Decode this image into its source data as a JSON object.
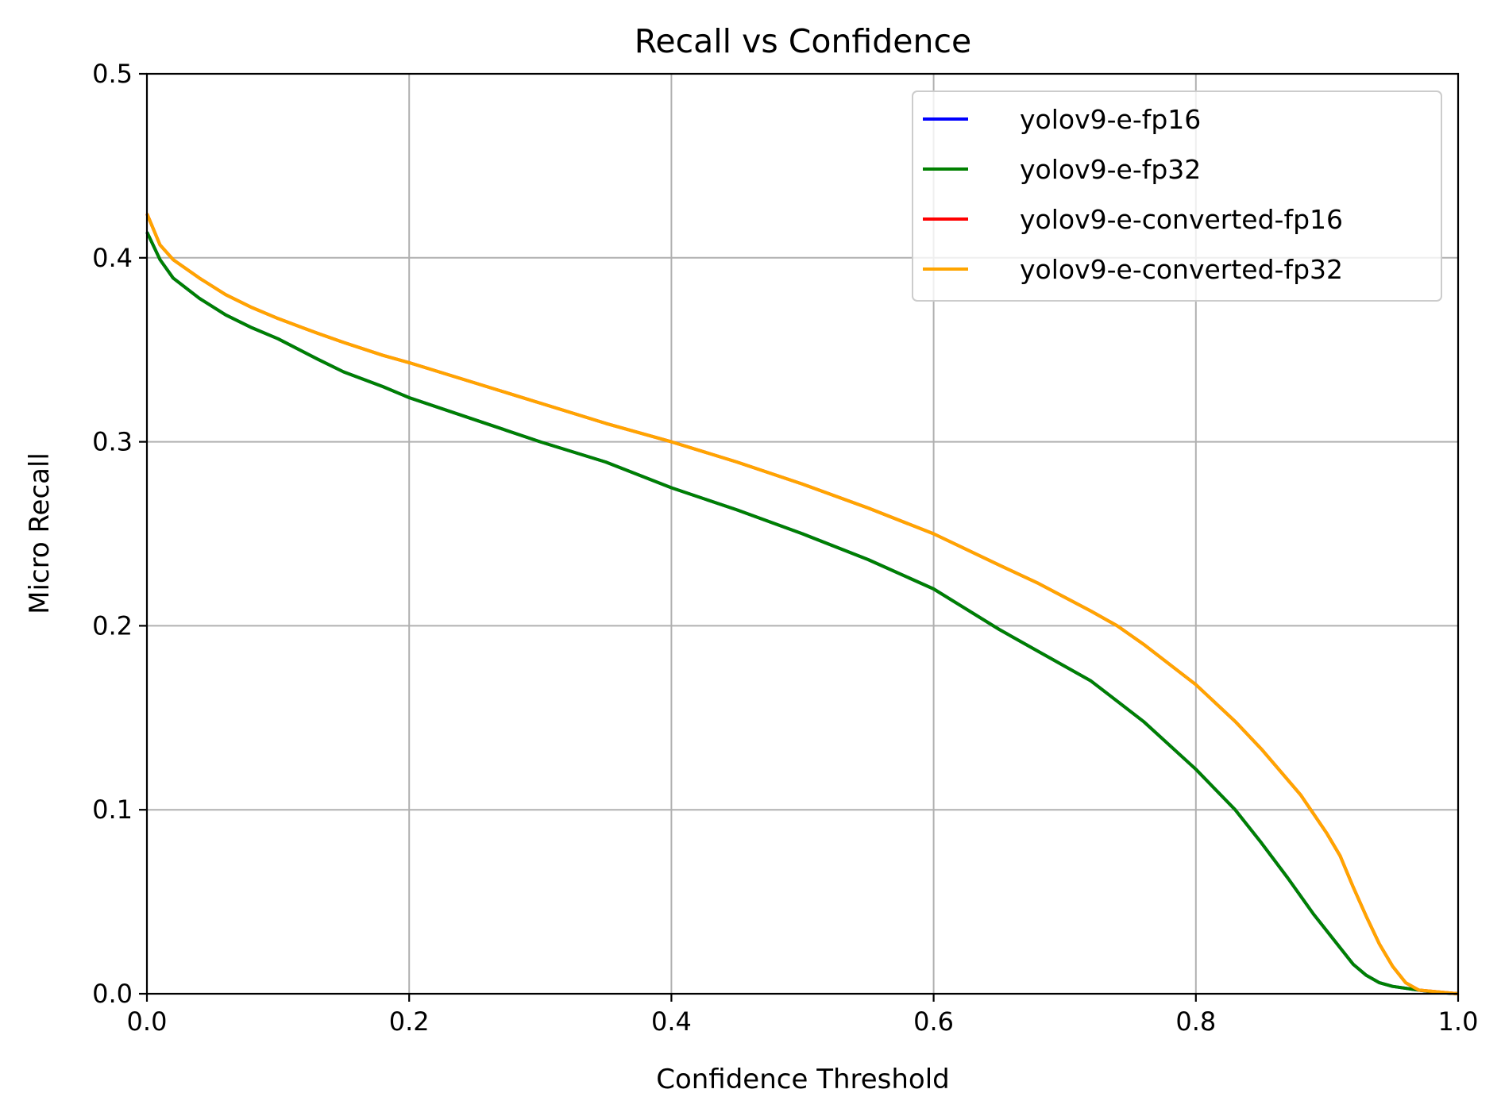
{
  "chart_data": {
    "type": "line",
    "title": "Recall vs Confidence",
    "xlabel": "Confidence Threshold",
    "ylabel": "Micro Recall",
    "xlim": [
      0.0,
      1.0
    ],
    "ylim": [
      0.0,
      0.5
    ],
    "x_ticks": [
      "0.0",
      "0.2",
      "0.4",
      "0.6",
      "0.8",
      "1.0"
    ],
    "y_ticks": [
      "0.0",
      "0.1",
      "0.2",
      "0.3",
      "0.4",
      "0.5"
    ],
    "grid": true,
    "legend_position": "top-right",
    "series": [
      {
        "name": "yolov9-e-fp16",
        "color": "#0000ff",
        "x": [
          0.0,
          0.01,
          0.02,
          0.04,
          0.06,
          0.08,
          0.1,
          0.13,
          0.15,
          0.18,
          0.2,
          0.25,
          0.3,
          0.35,
          0.4,
          0.45,
          0.5,
          0.55,
          0.6,
          0.65,
          0.68,
          0.72,
          0.76,
          0.8,
          0.83,
          0.85,
          0.87,
          0.89,
          0.91,
          0.92,
          0.93,
          0.94,
          0.95,
          0.97,
          0.98,
          1.0
        ],
        "y": [
          0.414,
          0.399,
          0.389,
          0.378,
          0.369,
          0.362,
          0.356,
          0.345,
          0.338,
          0.33,
          0.324,
          0.312,
          0.3,
          0.289,
          0.275,
          0.263,
          0.25,
          0.236,
          0.22,
          0.198,
          0.186,
          0.17,
          0.148,
          0.122,
          0.1,
          0.082,
          0.063,
          0.043,
          0.025,
          0.016,
          0.01,
          0.006,
          0.004,
          0.002,
          0.001,
          0.0
        ]
      },
      {
        "name": "yolov9-e-fp32",
        "color": "#008000",
        "x": [
          0.0,
          0.01,
          0.02,
          0.04,
          0.06,
          0.08,
          0.1,
          0.13,
          0.15,
          0.18,
          0.2,
          0.25,
          0.3,
          0.35,
          0.4,
          0.45,
          0.5,
          0.55,
          0.6,
          0.65,
          0.68,
          0.72,
          0.76,
          0.8,
          0.83,
          0.85,
          0.87,
          0.89,
          0.91,
          0.92,
          0.93,
          0.94,
          0.95,
          0.97,
          0.98,
          1.0
        ],
        "y": [
          0.414,
          0.399,
          0.389,
          0.378,
          0.369,
          0.362,
          0.356,
          0.345,
          0.338,
          0.33,
          0.324,
          0.312,
          0.3,
          0.289,
          0.275,
          0.263,
          0.25,
          0.236,
          0.22,
          0.198,
          0.186,
          0.17,
          0.148,
          0.122,
          0.1,
          0.082,
          0.063,
          0.043,
          0.025,
          0.016,
          0.01,
          0.006,
          0.004,
          0.002,
          0.001,
          0.0
        ]
      },
      {
        "name": "yolov9-e-converted-fp16",
        "color": "#ff0000",
        "x": [
          0.0,
          0.01,
          0.02,
          0.04,
          0.06,
          0.08,
          0.1,
          0.13,
          0.15,
          0.18,
          0.2,
          0.25,
          0.3,
          0.35,
          0.4,
          0.45,
          0.5,
          0.55,
          0.6,
          0.65,
          0.68,
          0.72,
          0.74,
          0.76,
          0.8,
          0.83,
          0.85,
          0.88,
          0.9,
          0.91,
          0.92,
          0.93,
          0.94,
          0.95,
          0.96,
          0.97,
          1.0
        ],
        "y": [
          0.424,
          0.407,
          0.399,
          0.389,
          0.38,
          0.373,
          0.367,
          0.359,
          0.354,
          0.347,
          0.343,
          0.332,
          0.321,
          0.31,
          0.3,
          0.289,
          0.277,
          0.264,
          0.25,
          0.233,
          0.223,
          0.208,
          0.2,
          0.19,
          0.168,
          0.148,
          0.133,
          0.108,
          0.087,
          0.075,
          0.058,
          0.042,
          0.027,
          0.015,
          0.006,
          0.002,
          0.0
        ]
      },
      {
        "name": "yolov9-e-converted-fp32",
        "color": "#ffa500",
        "x": [
          0.0,
          0.01,
          0.02,
          0.04,
          0.06,
          0.08,
          0.1,
          0.13,
          0.15,
          0.18,
          0.2,
          0.25,
          0.3,
          0.35,
          0.4,
          0.45,
          0.5,
          0.55,
          0.6,
          0.65,
          0.68,
          0.72,
          0.74,
          0.76,
          0.8,
          0.83,
          0.85,
          0.88,
          0.9,
          0.91,
          0.92,
          0.93,
          0.94,
          0.95,
          0.96,
          0.97,
          1.0
        ],
        "y": [
          0.424,
          0.407,
          0.399,
          0.389,
          0.38,
          0.373,
          0.367,
          0.359,
          0.354,
          0.347,
          0.343,
          0.332,
          0.321,
          0.31,
          0.3,
          0.289,
          0.277,
          0.264,
          0.25,
          0.233,
          0.223,
          0.208,
          0.2,
          0.19,
          0.168,
          0.148,
          0.133,
          0.108,
          0.087,
          0.075,
          0.058,
          0.042,
          0.027,
          0.015,
          0.006,
          0.002,
          0.0
        ]
      }
    ]
  }
}
